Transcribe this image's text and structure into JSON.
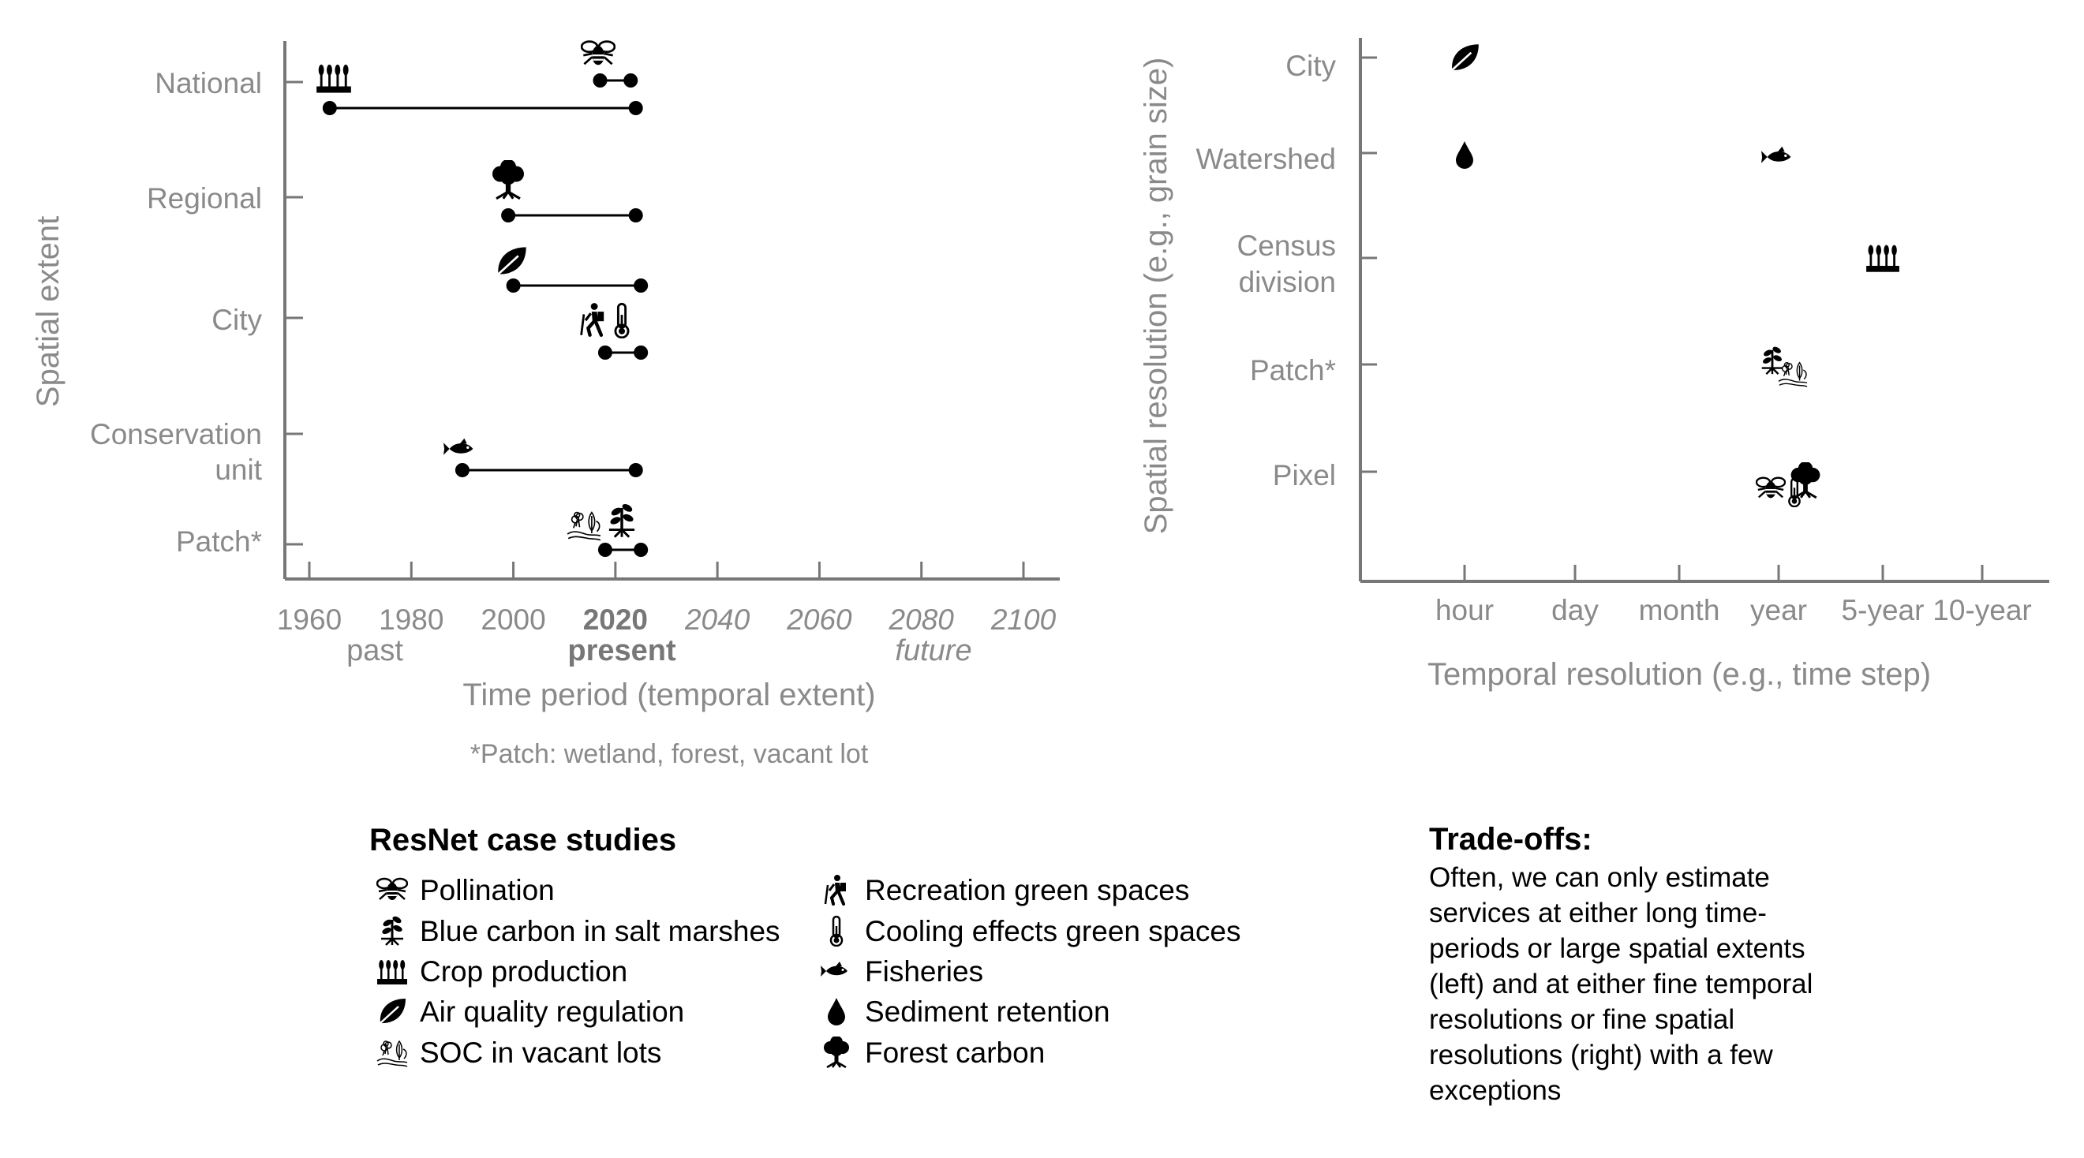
{
  "chart_data": [
    {
      "type": "range-dot",
      "title": "",
      "xlabel": "Time period (temporal extent)",
      "ylabel": "Spatial extent",
      "xlim": [
        1960,
        2100
      ],
      "x_ticks": [
        {
          "label": "1960",
          "value": 1960,
          "style": "normal"
        },
        {
          "label": "1980",
          "value": 1980,
          "style": "normal"
        },
        {
          "label": "2000",
          "value": 2000,
          "style": "normal"
        },
        {
          "label": "2020",
          "value": 2020,
          "style": "bold"
        },
        {
          "label": "2040",
          "value": 2040,
          "style": "italic"
        },
        {
          "label": "2060",
          "value": 2060,
          "style": "italic"
        },
        {
          "label": "2080",
          "value": 2080,
          "style": "italic"
        },
        {
          "label": "2100",
          "value": 2100,
          "style": "italic"
        }
      ],
      "period_labels": {
        "past": "past",
        "present": "present",
        "future": "future"
      },
      "y_categories": [
        "National",
        "Regional",
        "City",
        "Conservation unit",
        "Patch*"
      ],
      "footnote": "*Patch: wetland, forest, vacant lot",
      "series": [
        {
          "name": "Pollination",
          "level": "National",
          "start": 2017,
          "end": 2023,
          "icon": "bee-icon"
        },
        {
          "name": "Crop production",
          "level": "National",
          "start": 1964,
          "end": 2024,
          "icon": "wheat-icon"
        },
        {
          "name": "Forest carbon",
          "level": "Regional",
          "start": 1999,
          "end": 2024,
          "icon": "tree-icon"
        },
        {
          "name": "Air quality regulation",
          "level": "City",
          "start": 2000,
          "end": 2025,
          "icon": "leaf-icon"
        },
        {
          "name": "Recreation green spaces",
          "level": "City",
          "start": 2018,
          "end": 2025,
          "icon": "hiker-icon"
        },
        {
          "name": "Cooling effects green spaces",
          "level": "City",
          "start": 2018,
          "end": 2025,
          "icon": "thermometer-icon"
        },
        {
          "name": "Fisheries",
          "level": "Conservation unit",
          "start": 1990,
          "end": 2024,
          "icon": "fish-icon"
        },
        {
          "name": "Blue carbon in salt marshes",
          "level": "Patch*",
          "start": 2018,
          "end": 2025,
          "icon": "sprout-icon"
        },
        {
          "name": "SOC in vacant lots",
          "level": "Patch*",
          "start": 2018,
          "end": 2025,
          "icon": "soil-icon"
        }
      ]
    },
    {
      "type": "scatter",
      "title": "",
      "xlabel": "Temporal resolution (e.g., time step)",
      "ylabel": "Spatial resolution (e.g., grain size)",
      "x_categories": [
        "hour",
        "day",
        "month",
        "year",
        "5-year",
        "10-year"
      ],
      "y_categories": [
        "City",
        "Watershed",
        "Census division",
        "Patch*",
        "Pixel"
      ],
      "points": [
        {
          "name": "Air quality regulation",
          "x": "hour",
          "y": "City",
          "icon": "leaf-icon"
        },
        {
          "name": "Sediment retention",
          "x": "hour",
          "y": "Watershed",
          "icon": "drop-icon"
        },
        {
          "name": "Fisheries",
          "x": "year",
          "y": "Watershed",
          "icon": "fish-icon"
        },
        {
          "name": "Crop production",
          "x": "5-year",
          "y": "Census division",
          "icon": "wheat-icon"
        },
        {
          "name": "Blue carbon in salt marshes",
          "x": "year",
          "y": "Patch*",
          "icon": "sprout-icon"
        },
        {
          "name": "SOC in vacant lots",
          "x": "year",
          "y": "Patch*",
          "icon": "soil-icon"
        },
        {
          "name": "Pollination",
          "x": "year",
          "y": "Pixel",
          "icon": "bee-icon"
        },
        {
          "name": "Cooling effects green spaces",
          "x": "year",
          "y": "Pixel",
          "icon": "thermometer-icon"
        },
        {
          "name": "Forest carbon",
          "x": "year",
          "y": "Pixel",
          "icon": "tree-icon"
        }
      ]
    }
  ],
  "legend": {
    "title": "ResNet case studies",
    "col1": [
      {
        "label": "Pollination",
        "icon": "bee-icon"
      },
      {
        "label": "Blue carbon in salt marshes",
        "icon": "sprout-icon"
      },
      {
        "label": "Crop production",
        "icon": "wheat-icon"
      },
      {
        "label": "Air quality regulation",
        "icon": "leaf-icon"
      },
      {
        "label": "SOC in vacant lots",
        "icon": "soil-icon"
      }
    ],
    "col2": [
      {
        "label": "Recreation green spaces",
        "icon": "hiker-icon"
      },
      {
        "label": "Cooling effects green spaces",
        "icon": "thermometer-icon"
      },
      {
        "label": "Fisheries",
        "icon": "fish-icon"
      },
      {
        "label": "Sediment retention",
        "icon": "drop-icon"
      },
      {
        "label": "Forest carbon",
        "icon": "tree-icon"
      }
    ]
  },
  "tradeoffs": {
    "title": "Trade-offs:",
    "lines": [
      "Often, we can only estimate",
      "services at either long time-",
      "periods or large spatial extents",
      "(left) and at either fine temporal",
      "resolutions or fine spatial",
      "resolutions (right) with a few",
      "exceptions"
    ]
  }
}
